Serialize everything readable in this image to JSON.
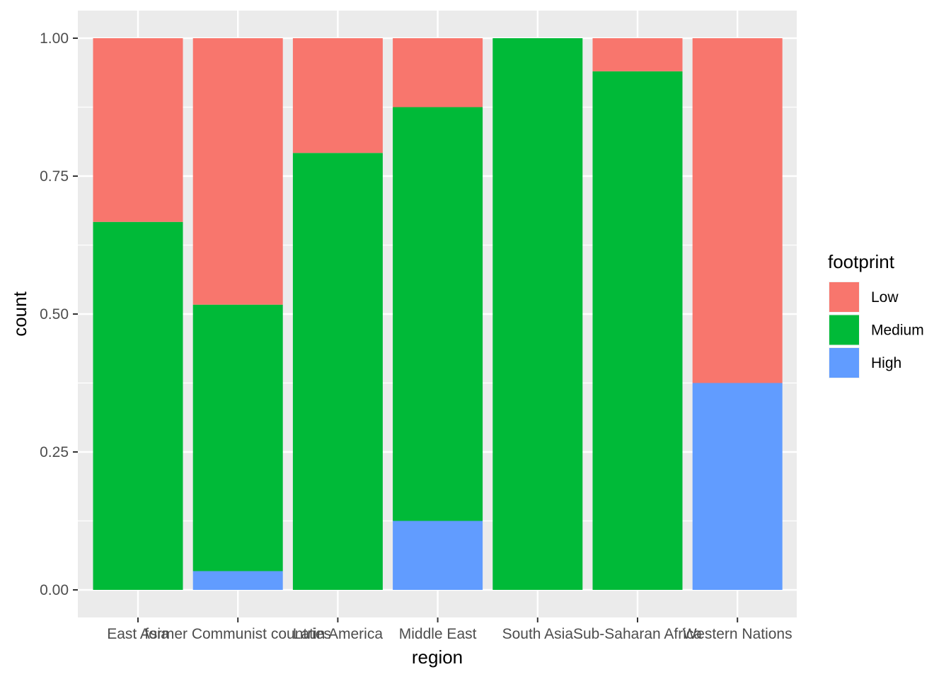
{
  "chart_data": {
    "type": "bar",
    "stacked": true,
    "xlabel": "region",
    "ylabel": "count",
    "ylim": [
      0,
      1
    ],
    "yticks": [
      0,
      0.25,
      0.5,
      0.75,
      1
    ],
    "ytick_labels": [
      "0.00",
      "0.25",
      "0.50",
      "0.75",
      "1.00"
    ],
    "grid": true,
    "panel_background": "#ebebeb",
    "categories": [
      "East Asia",
      "former Communist countries",
      "Latin America",
      "Middle East",
      "South Asia",
      "Sub-Saharan Africa",
      "Western Nations"
    ],
    "stack_order_bottom_to_top": [
      "High",
      "Medium",
      "Low"
    ],
    "series": [
      {
        "name": "Low",
        "color": "#f8766d",
        "values": [
          0.333,
          0.483,
          0.208,
          0.125,
          0.0,
          0.06,
          0.625
        ]
      },
      {
        "name": "Medium",
        "color": "#00ba38",
        "values": [
          0.667,
          0.483,
          0.792,
          0.75,
          1.0,
          0.94,
          0.0
        ]
      },
      {
        "name": "High",
        "color": "#619cff",
        "values": [
          0.0,
          0.034,
          0.0,
          0.125,
          0.0,
          0.0,
          0.375
        ]
      }
    ],
    "legend": {
      "title": "footprint",
      "position": "right",
      "entries": [
        "Low",
        "Medium",
        "High"
      ]
    }
  }
}
